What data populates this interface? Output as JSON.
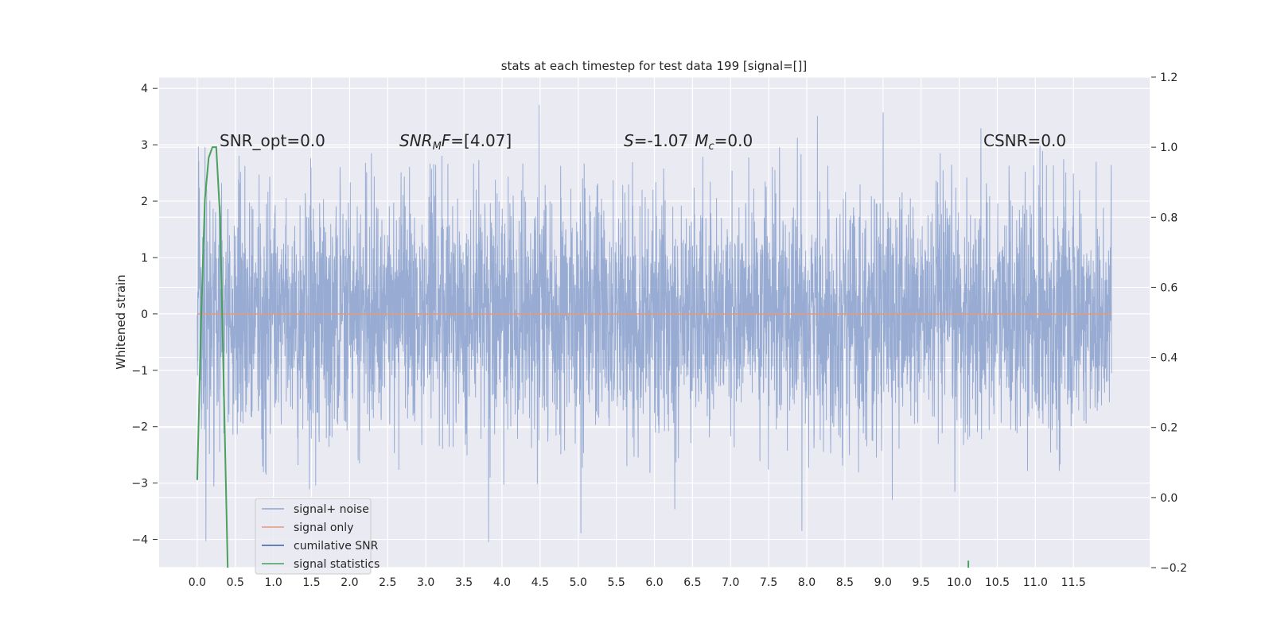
{
  "chart_data": {
    "type": "line",
    "title": "stats at each timestep for test data 199 [signal=[]]",
    "xlabel": "",
    "ylabel": "Whitened strain",
    "xlim": [
      -0.5,
      12.5
    ],
    "ylim": [
      -4.5,
      4.2
    ],
    "y2lim": [
      -0.2,
      1.2
    ],
    "xticks": [
      "0.0",
      "0.5",
      "1.0",
      "1.5",
      "2.0",
      "2.5",
      "3.0",
      "3.5",
      "4.0",
      "4.5",
      "5.0",
      "5.5",
      "6.0",
      "6.5",
      "7.0",
      "7.5",
      "8.0",
      "8.5",
      "9.0",
      "9.5",
      "10.0",
      "10.5",
      "11.0",
      "11.5"
    ],
    "yticks": [
      "4",
      "3",
      "2",
      "1",
      "0",
      "−1",
      "−2",
      "−3",
      "−4"
    ],
    "y2ticks": [
      "1.2",
      "1.0",
      "0.8",
      "0.6",
      "0.4",
      "0.2",
      "0.0",
      "−0.2"
    ],
    "grid": true,
    "legend_placement": "lower-left",
    "annotations": {
      "snr_opt": "SNR_opt=0.0",
      "snr_mf_label": "SNR",
      "snr_mf_sub": "M",
      "snr_mf_label2": "F",
      "snr_mf_value": "=[4.07]",
      "s_label": "S",
      "s_value": "=-1.07",
      "mc_label": "M",
      "mc_sub": "c",
      "mc_value": "=0.0",
      "csnr": "CSNR=0.0"
    },
    "series": [
      {
        "name": "signal+ noise",
        "color": "#8fa5cf",
        "note_values": "white noise, std ~1, peaks ~[-4, 3.8]"
      },
      {
        "name": "signal only",
        "color": "#e39a7f",
        "values_constant": 0.0
      },
      {
        "name": "cumilative SNR",
        "color": "#3a5fa6"
      },
      {
        "name": "signal statistics",
        "color": "#4aa05d",
        "axis": "right",
        "x": [
          0.0,
          0.05,
          0.1,
          0.15,
          0.2,
          0.25,
          0.3,
          0.35,
          0.4
        ],
        "values": [
          0.05,
          0.5,
          0.85,
          0.97,
          1.0,
          1.0,
          0.8,
          0.3,
          -0.2
        ],
        "tail_x": [
          10.12,
          10.12
        ],
        "tail_values": [
          -0.2,
          -0.18
        ]
      }
    ],
    "x_range_data": [
      0.0,
      12.0
    ]
  }
}
